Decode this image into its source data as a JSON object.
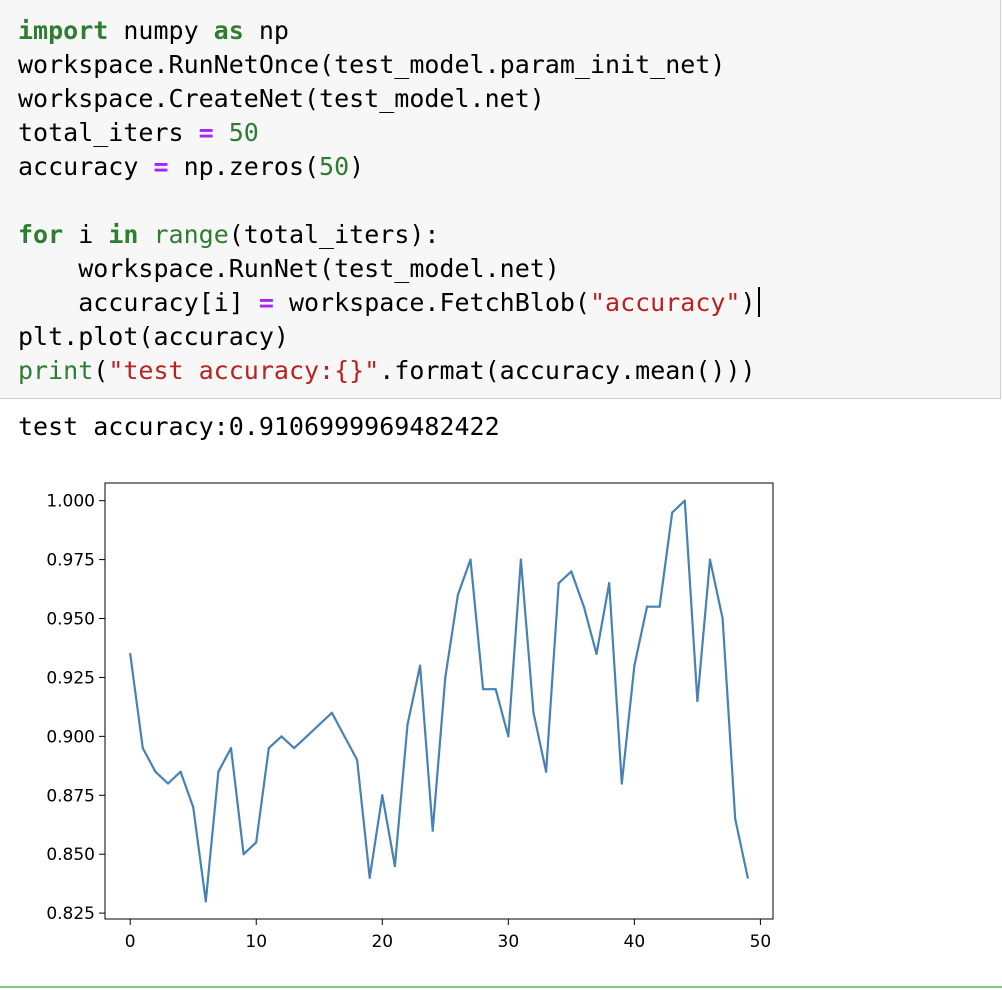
{
  "code_cell": {
    "lines": [
      [
        {
          "t": "import",
          "c": "kw"
        },
        {
          "t": " numpy ",
          "c": ""
        },
        {
          "t": "as",
          "c": "kw"
        },
        {
          "t": " np",
          "c": ""
        }
      ],
      [
        {
          "t": "workspace.RunNetOnce(test_model.param_init_net)",
          "c": ""
        }
      ],
      [
        {
          "t": "workspace.CreateNet(test_model.net)",
          "c": ""
        }
      ],
      [
        {
          "t": "total_iters ",
          "c": ""
        },
        {
          "t": "=",
          "c": "op"
        },
        {
          "t": " ",
          "c": ""
        },
        {
          "t": "50",
          "c": "num"
        }
      ],
      [
        {
          "t": "accuracy ",
          "c": ""
        },
        {
          "t": "=",
          "c": "op"
        },
        {
          "t": " np.zeros(",
          "c": ""
        },
        {
          "t": "50",
          "c": "num"
        },
        {
          "t": ")",
          "c": ""
        }
      ],
      [
        {
          "t": "",
          "c": ""
        }
      ],
      [
        {
          "t": "for",
          "c": "kw"
        },
        {
          "t": " i ",
          "c": ""
        },
        {
          "t": "in",
          "c": "kw"
        },
        {
          "t": " ",
          "c": ""
        },
        {
          "t": "range",
          "c": "bi"
        },
        {
          "t": "(total_iters):",
          "c": ""
        }
      ],
      [
        {
          "t": "    workspace.RunNet(test_model.net)",
          "c": ""
        }
      ],
      [
        {
          "t": "    accuracy[i] ",
          "c": ""
        },
        {
          "t": "=",
          "c": "op"
        },
        {
          "t": " workspace.FetchBlob(",
          "c": ""
        },
        {
          "t": "\"accuracy\"",
          "c": "str"
        },
        {
          "t": ")",
          "c": ""
        },
        {
          "t": "",
          "c": "cursor"
        }
      ],
      [
        {
          "t": "plt.plot(accuracy)",
          "c": ""
        }
      ],
      [
        {
          "t": "print",
          "c": "bi"
        },
        {
          "t": "(",
          "c": ""
        },
        {
          "t": "\"test accuracy:{}\"",
          "c": "str"
        },
        {
          "t": ".format(accuracy.mean()))",
          "c": ""
        }
      ]
    ]
  },
  "output": {
    "text": "test accuracy:0.9106999969482422"
  },
  "chart_data": {
    "type": "line",
    "title": "",
    "xlabel": "",
    "ylabel": "",
    "x": [
      0,
      1,
      2,
      3,
      4,
      5,
      6,
      7,
      8,
      9,
      10,
      11,
      12,
      13,
      14,
      15,
      16,
      17,
      18,
      19,
      20,
      21,
      22,
      23,
      24,
      25,
      26,
      27,
      28,
      29,
      30,
      31,
      32,
      33,
      34,
      35,
      36,
      37,
      38,
      39,
      40,
      41,
      42,
      43,
      44,
      45,
      46,
      47,
      48,
      49
    ],
    "values": [
      0.935,
      0.895,
      0.885,
      0.88,
      0.885,
      0.87,
      0.83,
      0.885,
      0.895,
      0.85,
      0.855,
      0.895,
      0.9,
      0.895,
      0.9,
      0.905,
      0.91,
      0.9,
      0.89,
      0.84,
      0.875,
      0.845,
      0.905,
      0.93,
      0.86,
      0.925,
      0.96,
      0.975,
      0.92,
      0.92,
      0.9,
      0.975,
      0.91,
      0.885,
      0.965,
      0.97,
      0.955,
      0.935,
      0.965,
      0.88,
      0.93,
      0.955,
      0.955,
      0.995,
      1.0,
      0.915,
      0.975,
      0.95,
      0.865,
      0.84
    ],
    "xlim": [
      -2,
      51
    ],
    "ylim": [
      0.8225,
      1.0075
    ],
    "xticks": [
      0,
      10,
      20,
      30,
      40,
      50
    ],
    "xtick_labels": [
      "0",
      "10",
      "20",
      "30",
      "40",
      "50"
    ],
    "yticks": [
      0.825,
      0.85,
      0.875,
      0.9,
      0.925,
      0.95,
      0.975,
      1.0
    ],
    "ytick_labels": [
      "0.825",
      "0.850",
      "0.875",
      "0.900",
      "0.925",
      "0.950",
      "0.975",
      "1.000"
    ],
    "line_color": "#4682b4",
    "grid": false
  }
}
